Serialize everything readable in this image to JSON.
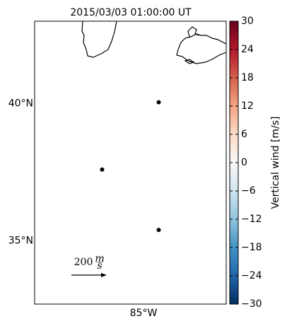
{
  "title": "2015/03/03 01:00:00 UT",
  "map": {
    "xlim": [
      -90.0,
      -81.2
    ],
    "ylim": [
      32.7,
      43.0
    ],
    "lat_ticks": [
      {
        "value": 40,
        "label": "40°N"
      },
      {
        "value": 35,
        "label": "35°N"
      }
    ],
    "lon_ticks": [
      {
        "value": -85,
        "label": "85°W"
      }
    ],
    "points": {
      "color": "#000000",
      "lon": [
        -84.3,
        -86.9,
        -84.3
      ],
      "lat": [
        40.05,
        37.6,
        35.4
      ]
    },
    "scale_arrow": {
      "number": "200",
      "numerator": "m",
      "denominator": "s"
    }
  },
  "colorbar": {
    "label": "Vertical wind [m/s]",
    "lim": [
      -30,
      30
    ],
    "colormap": [
      "#053061",
      "#2166ac",
      "#4393c3",
      "#92c5de",
      "#d1e5f0",
      "#f7f7f7",
      "#fddbc7",
      "#f4a582",
      "#d6604d",
      "#b2182b",
      "#67001f"
    ],
    "ticks": [
      {
        "value": -30,
        "label": "−30"
      },
      {
        "value": -24,
        "label": "−24"
      },
      {
        "value": -18,
        "label": "−18"
      },
      {
        "value": -12,
        "label": "−12"
      },
      {
        "value": -6,
        "label": "−6"
      },
      0,
      6,
      12,
      18,
      24,
      30
    ]
  }
}
